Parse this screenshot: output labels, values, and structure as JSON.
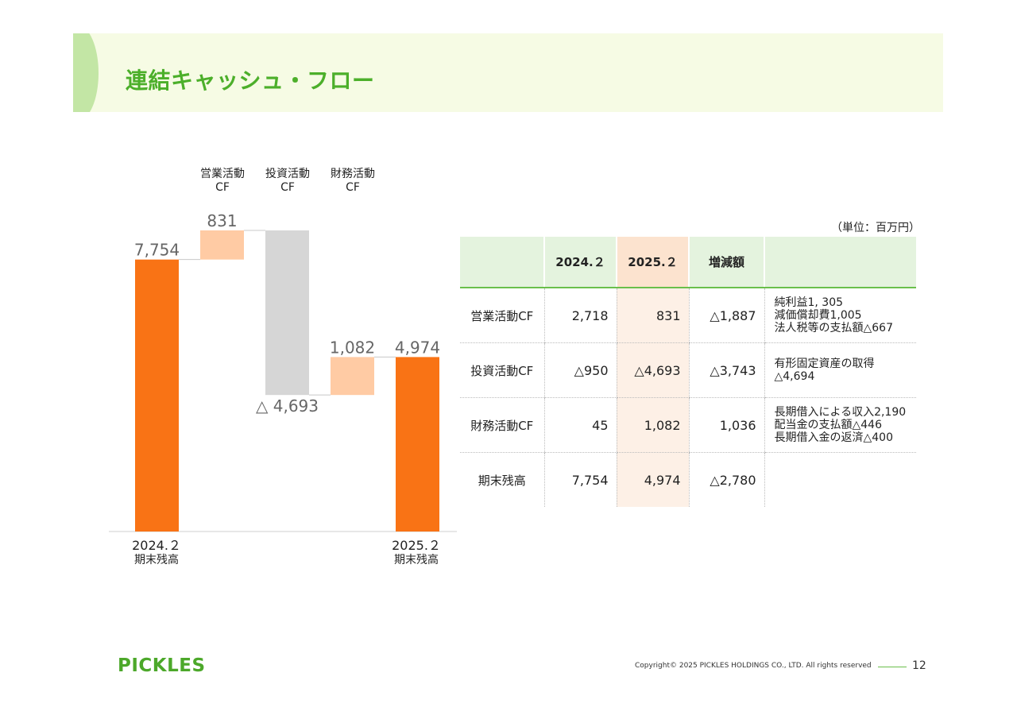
{
  "page": {
    "title": "連結キャッシュ・フロー",
    "unit": "（単位：百万円）",
    "logo": "PICKLES",
    "copyright": "Copyright© 2025 PICKLES HOLDINGS CO., LTD. All rights reserved",
    "page_number": "12"
  },
  "chart_data": {
    "type": "bar",
    "subtype": "waterfall",
    "title": "",
    "categories": [
      "2024.２ 期末残高",
      "営業活動CF",
      "投資活動CF",
      "財務活動CF",
      "2025.２ 期末残高"
    ],
    "values": [
      7754,
      831,
      -4693,
      1082,
      4974
    ],
    "category_headers": [
      {
        "line1": "営業活動",
        "line2": "CF"
      },
      {
        "line1": "投資活動",
        "line2": "CF"
      },
      {
        "line1": "財務活動",
        "line2": "CF"
      }
    ],
    "foot_labels": [
      {
        "year": "2024.２",
        "name": "期末残高"
      },
      {
        "year": "2025.２",
        "name": "期末残高"
      }
    ],
    "data_labels": [
      "7,754",
      "831",
      "△ 4,693",
      "1,082",
      "4,974"
    ],
    "colors": {
      "total": "#f97315",
      "increase": "#ffcba4",
      "decrease": "#d6d6d6"
    },
    "ylim": [
      0,
      8585
    ],
    "grid": false
  },
  "table": {
    "headers": [
      "",
      "2024.２",
      "2025.２",
      "増減額",
      ""
    ],
    "rows": [
      {
        "label": "営業活動CF",
        "v2024": "2,718",
        "v2025": "831",
        "diff": "△1,887",
        "note": "純利益1, 305\n減価償却費1,005\n法人税等の支払額△667"
      },
      {
        "label": "投資活動CF",
        "v2024": "△950",
        "v2025": "△4,693",
        "diff": "△3,743",
        "note": "有形固定資産の取得\n△4,694"
      },
      {
        "label": "財務活動CF",
        "v2024": "45",
        "v2025": "1,082",
        "diff": "1,036",
        "note": "長期借入による収入2,190\n配当金の支払額△446\n長期借入金の返済△400"
      },
      {
        "label": "期末残高",
        "v2024": "7,754",
        "v2025": "4,974",
        "diff": "△2,780",
        "note": ""
      }
    ]
  }
}
